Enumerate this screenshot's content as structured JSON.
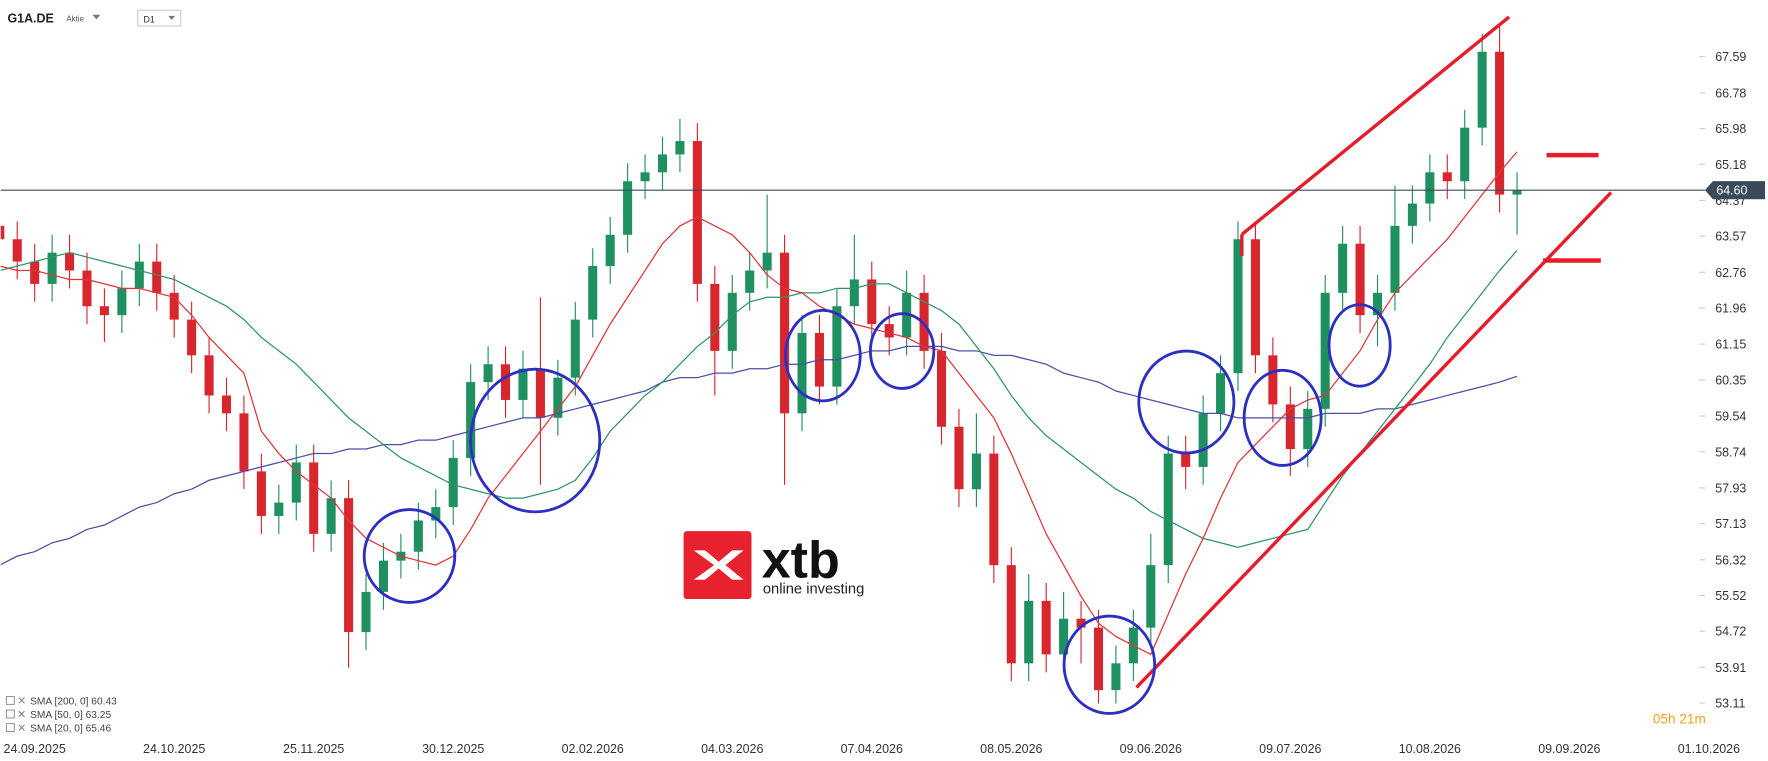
{
  "header": {
    "symbol": "G1A.DE",
    "instrument_type": "Aktie",
    "timeframe": "D1",
    "timer": "05h 21m"
  },
  "chart_data": {
    "type": "candlestick",
    "categories": [
      null,
      null,
      "24.09.2025",
      null,
      null,
      null,
      null,
      null,
      null,
      null,
      "24.10.2025",
      null,
      null,
      null,
      null,
      null,
      null,
      null,
      "25.11.2025",
      null,
      null,
      null,
      null,
      null,
      null,
      null,
      "30.12.2025",
      null,
      null,
      null,
      null,
      null,
      null,
      null,
      "02.02.2026",
      null,
      null,
      null,
      null,
      null,
      null,
      null,
      "04.03.2026",
      null,
      null,
      null,
      null,
      null,
      null,
      null,
      "07.04.2026",
      null,
      null,
      null,
      null,
      null,
      null,
      null,
      "08.05.2026",
      null,
      null,
      null,
      null,
      null,
      null,
      null,
      "09.06.2026",
      null,
      null,
      null,
      null,
      null,
      null,
      null,
      "09.07.2026",
      null,
      null,
      null,
      null,
      null,
      null,
      null,
      "10.08.2026",
      null,
      null,
      null,
      null,
      null,
      null,
      null,
      "09.09.2026",
      null,
      null,
      null,
      null,
      null,
      null,
      null,
      "01.10.2026",
      null
    ],
    "open": [
      63.8,
      63.5,
      63.0,
      62.5,
      63.2,
      62.8,
      62.0,
      61.8,
      62.4,
      63.0,
      62.3,
      61.7,
      60.9,
      60.0,
      59.6,
      58.3,
      57.3,
      57.6,
      58.5,
      56.9,
      57.7,
      54.7,
      55.6,
      56.3,
      56.5,
      57.2,
      57.5,
      58.6,
      60.3,
      60.7,
      59.9,
      60.6,
      59.5,
      60.4,
      61.7,
      62.9,
      63.6,
      64.8,
      65.0,
      65.4,
      65.7,
      62.5,
      61.0,
      62.3,
      62.8,
      63.2,
      59.6,
      61.4,
      60.2,
      62.0,
      62.6,
      61.6,
      61.3,
      62.3,
      61.0,
      59.3,
      57.9,
      58.7,
      56.2,
      54.0,
      55.4,
      54.2,
      55.0,
      54.8,
      53.4,
      54.0,
      54.8,
      56.2,
      58.7,
      58.4,
      59.6,
      60.5,
      63.5,
      60.9,
      59.8,
      58.8,
      59.7,
      62.3,
      63.4,
      61.8,
      62.3,
      63.8,
      64.3,
      65.0,
      64.8,
      66.0,
      67.7,
      64.5,
      null,
      null,
      null,
      null,
      null,
      null,
      null,
      null,
      null,
      null,
      null,
      null
    ],
    "high": [
      64.2,
      63.9,
      63.4,
      63.6,
      63.6,
      63.2,
      62.4,
      62.8,
      63.4,
      63.4,
      62.7,
      62.1,
      61.3,
      60.4,
      60.0,
      58.7,
      58.0,
      58.9,
      58.9,
      58.1,
      58.1,
      56.0,
      56.7,
      56.9,
      57.6,
      57.9,
      59.0,
      60.7,
      61.1,
      61.1,
      61.0,
      62.2,
      60.8,
      62.1,
      63.3,
      64.0,
      65.2,
      65.4,
      65.8,
      66.2,
      66.1,
      62.9,
      62.7,
      63.2,
      64.5,
      63.6,
      61.8,
      61.8,
      62.4,
      63.6,
      63.0,
      62.0,
      62.8,
      62.7,
      61.4,
      59.7,
      59.6,
      59.1,
      56.6,
      56.0,
      55.8,
      55.6,
      55.4,
      55.2,
      54.4,
      55.2,
      56.9,
      59.1,
      59.1,
      60.0,
      60.9,
      63.9,
      63.9,
      61.3,
      60.2,
      60.1,
      62.7,
      63.8,
      63.8,
      62.7,
      64.7,
      64.7,
      65.4,
      65.4,
      66.4,
      68.1,
      68.3,
      65.0,
      null,
      null,
      null,
      null,
      null,
      null,
      null,
      null,
      null,
      null,
      null,
      null
    ],
    "low": [
      63.1,
      62.6,
      62.1,
      62.1,
      62.4,
      61.6,
      61.2,
      61.4,
      62.0,
      61.9,
      61.3,
      60.5,
      59.6,
      59.2,
      57.9,
      56.9,
      56.9,
      57.2,
      56.5,
      56.5,
      53.9,
      54.3,
      55.2,
      55.9,
      56.1,
      56.8,
      57.1,
      58.2,
      59.9,
      59.5,
      59.5,
      58.0,
      59.1,
      60.0,
      61.3,
      62.5,
      63.2,
      64.4,
      64.6,
      65.0,
      62.1,
      60.0,
      60.6,
      61.9,
      62.4,
      58.0,
      59.2,
      59.8,
      59.8,
      61.6,
      61.2,
      60.9,
      60.9,
      60.6,
      58.9,
      57.5,
      57.5,
      55.8,
      53.6,
      53.6,
      53.8,
      53.8,
      54.0,
      53.1,
      53.1,
      53.6,
      54.4,
      55.8,
      57.9,
      58.0,
      59.2,
      60.1,
      60.5,
      59.4,
      58.2,
      58.4,
      59.3,
      61.9,
      61.4,
      61.1,
      61.9,
      63.4,
      63.9,
      64.4,
      64.4,
      65.6,
      64.1,
      63.6,
      null,
      null,
      null,
      null,
      null,
      null,
      null,
      null,
      null,
      null,
      null,
      null
    ],
    "close": [
      63.5,
      63.0,
      62.5,
      63.2,
      62.8,
      62.0,
      61.8,
      62.4,
      63.0,
      62.3,
      61.7,
      60.9,
      60.0,
      59.6,
      58.3,
      57.3,
      57.6,
      58.5,
      56.9,
      57.7,
      54.7,
      55.6,
      56.3,
      56.5,
      57.2,
      57.5,
      58.6,
      60.3,
      60.7,
      59.9,
      60.6,
      59.5,
      60.4,
      61.7,
      62.9,
      63.6,
      64.8,
      65.0,
      65.4,
      65.7,
      62.5,
      61.0,
      62.3,
      62.8,
      63.2,
      59.6,
      61.4,
      60.2,
      62.0,
      62.6,
      61.6,
      61.3,
      62.3,
      61.0,
      59.3,
      57.9,
      58.7,
      56.2,
      54.0,
      55.4,
      54.2,
      55.0,
      54.8,
      53.4,
      54.0,
      54.8,
      56.2,
      58.7,
      58.4,
      59.6,
      60.5,
      63.5,
      60.9,
      59.8,
      58.8,
      59.7,
      62.3,
      63.4,
      61.8,
      62.3,
      63.8,
      64.3,
      65.0,
      64.8,
      66.0,
      67.7,
      64.5,
      64.6,
      null,
      null,
      null,
      null,
      null,
      null,
      null,
      null,
      null,
      null,
      null,
      null
    ],
    "up_color": "#1f9060",
    "down_color": "#d8262f",
    "series": [
      {
        "name": "SMA [200, 0] 60.43",
        "color": "#4a4fa8",
        "values": [
          56.2,
          56.4,
          56.5,
          56.7,
          56.8,
          57.0,
          57.1,
          57.3,
          57.5,
          57.6,
          57.8,
          57.9,
          58.1,
          58.2,
          58.3,
          58.4,
          58.5,
          58.6,
          58.7,
          58.7,
          58.8,
          58.8,
          58.9,
          58.9,
          59.0,
          59.0,
          59.1,
          59.2,
          59.3,
          59.4,
          59.5,
          59.5,
          59.6,
          59.7,
          59.8,
          59.9,
          60.0,
          60.1,
          60.3,
          60.4,
          60.4,
          60.5,
          60.5,
          60.6,
          60.6,
          60.7,
          60.7,
          60.8,
          60.8,
          60.9,
          61.0,
          61.0,
          61.1,
          61.1,
          61.1,
          61.0,
          61.0,
          60.9,
          60.9,
          60.8,
          60.7,
          60.5,
          60.4,
          60.3,
          60.1,
          60.0,
          59.9,
          59.8,
          59.7,
          59.6,
          59.6,
          59.5,
          59.5,
          59.5,
          59.5,
          59.5,
          59.6,
          59.6,
          59.6,
          59.7,
          59.7,
          59.8,
          59.9,
          60.0,
          60.1,
          60.2,
          60.3,
          60.43,
          null,
          null,
          null,
          null,
          null,
          null,
          null,
          null,
          null,
          null,
          null,
          null
        ]
      },
      {
        "name": "SMA [50, 0] 63.25",
        "color": "#2f9468",
        "values": [
          62.8,
          62.9,
          63.0,
          63.1,
          63.2,
          63.1,
          63.0,
          62.9,
          62.8,
          62.7,
          62.6,
          62.4,
          62.2,
          62.0,
          61.7,
          61.3,
          61.0,
          60.7,
          60.3,
          59.9,
          59.5,
          59.2,
          58.9,
          58.6,
          58.4,
          58.2,
          58.0,
          57.9,
          57.8,
          57.7,
          57.7,
          57.8,
          57.9,
          58.1,
          58.6,
          59.2,
          59.6,
          60.0,
          60.3,
          60.7,
          61.1,
          61.4,
          61.8,
          62.1,
          62.2,
          62.2,
          62.3,
          62.3,
          62.4,
          62.4,
          62.5,
          62.5,
          62.3,
          62.1,
          61.9,
          61.6,
          61.1,
          60.6,
          60.0,
          59.5,
          59.1,
          58.8,
          58.5,
          58.2,
          57.9,
          57.7,
          57.4,
          57.2,
          57.0,
          56.8,
          56.7,
          56.6,
          56.7,
          56.8,
          56.9,
          57.0,
          57.6,
          58.2,
          58.7,
          59.2,
          59.7,
          60.2,
          60.7,
          61.3,
          61.8,
          62.3,
          62.8,
          63.25,
          null,
          null,
          null,
          null,
          null,
          null,
          null,
          null,
          null,
          null,
          null,
          null
        ]
      },
      {
        "name": "SMA [20, 0] 65.46",
        "color": "#e0353a",
        "values": [
          62.9,
          62.8,
          62.8,
          62.7,
          62.6,
          62.6,
          62.5,
          62.4,
          62.4,
          62.3,
          62.2,
          61.8,
          61.3,
          60.9,
          60.5,
          59.2,
          58.7,
          58.3,
          58.0,
          57.7,
          57.2,
          56.8,
          56.6,
          56.4,
          56.3,
          56.2,
          56.4,
          57.0,
          57.7,
          58.2,
          58.7,
          59.2,
          59.7,
          60.2,
          60.9,
          61.6,
          62.2,
          62.8,
          63.4,
          63.8,
          64.0,
          63.8,
          63.6,
          63.2,
          62.7,
          62.4,
          62.3,
          62.0,
          61.8,
          61.6,
          61.5,
          61.4,
          61.3,
          61.1,
          61.0,
          60.5,
          60.0,
          59.5,
          58.7,
          57.8,
          56.9,
          56.2,
          55.5,
          54.9,
          54.6,
          54.4,
          54.2,
          55.1,
          56.0,
          56.8,
          57.7,
          58.5,
          58.9,
          59.3,
          59.7,
          59.9,
          60.0,
          60.5,
          61.0,
          61.7,
          62.3,
          62.7,
          63.1,
          63.5,
          64.0,
          64.5,
          65.0,
          65.46,
          null,
          null,
          null,
          null,
          null,
          null,
          null,
          null,
          null,
          null,
          null,
          null
        ]
      }
    ],
    "ylim": [
      52.37,
      68.86
    ],
    "yticks": [
      53.11,
      53.91,
      54.72,
      55.52,
      56.32,
      57.13,
      57.93,
      58.74,
      59.54,
      60.35,
      61.15,
      61.96,
      62.76,
      63.57,
      64.37,
      65.18,
      65.98,
      66.78,
      67.59
    ],
    "current_price": {
      "value": 64.6,
      "label": "64.60"
    },
    "watermark": {
      "brand": "xtb",
      "tagline": "online investing"
    }
  }
}
